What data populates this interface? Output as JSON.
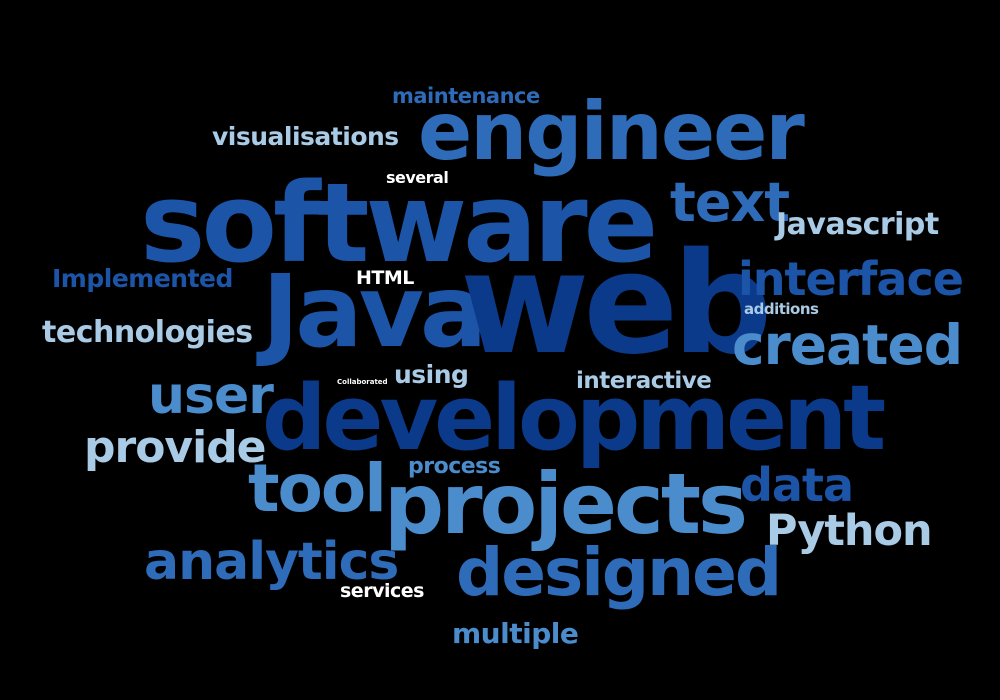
{
  "word_cloud": {
    "background_color": "#000000",
    "palette": [
      "#0b3a8a",
      "#1c55a8",
      "#2e6bb8",
      "#4a8ccc",
      "#a9cbe6",
      "#ffffff"
    ],
    "words": [
      {
        "id": "maintenance",
        "text": "maintenance"
      },
      {
        "id": "engineer",
        "text": "engineer"
      },
      {
        "id": "visualisations",
        "text": "visualisations"
      },
      {
        "id": "several",
        "text": "several"
      },
      {
        "id": "software",
        "text": "software"
      },
      {
        "id": "text",
        "text": "text"
      },
      {
        "id": "javascript",
        "text": "Javascript"
      },
      {
        "id": "implemented",
        "text": "Implemented"
      },
      {
        "id": "html",
        "text": "HTML"
      },
      {
        "id": "java",
        "text": "Java"
      },
      {
        "id": "web",
        "text": "web"
      },
      {
        "id": "interface",
        "text": "interface"
      },
      {
        "id": "additions",
        "text": "additions"
      },
      {
        "id": "technologies",
        "text": "technologies"
      },
      {
        "id": "created",
        "text": "created"
      },
      {
        "id": "collaborated",
        "text": "Collaborated"
      },
      {
        "id": "using",
        "text": "using"
      },
      {
        "id": "interactive",
        "text": "interactive"
      },
      {
        "id": "user",
        "text": "user"
      },
      {
        "id": "development",
        "text": "development"
      },
      {
        "id": "provide",
        "text": "provide"
      },
      {
        "id": "process",
        "text": "process"
      },
      {
        "id": "tool",
        "text": "tool"
      },
      {
        "id": "data",
        "text": "data"
      },
      {
        "id": "projects",
        "text": "projects"
      },
      {
        "id": "python",
        "text": "Python"
      },
      {
        "id": "analytics",
        "text": "analytics"
      },
      {
        "id": "designed",
        "text": "designed"
      },
      {
        "id": "services",
        "text": "services"
      },
      {
        "id": "multiple",
        "text": "multiple"
      }
    ]
  }
}
